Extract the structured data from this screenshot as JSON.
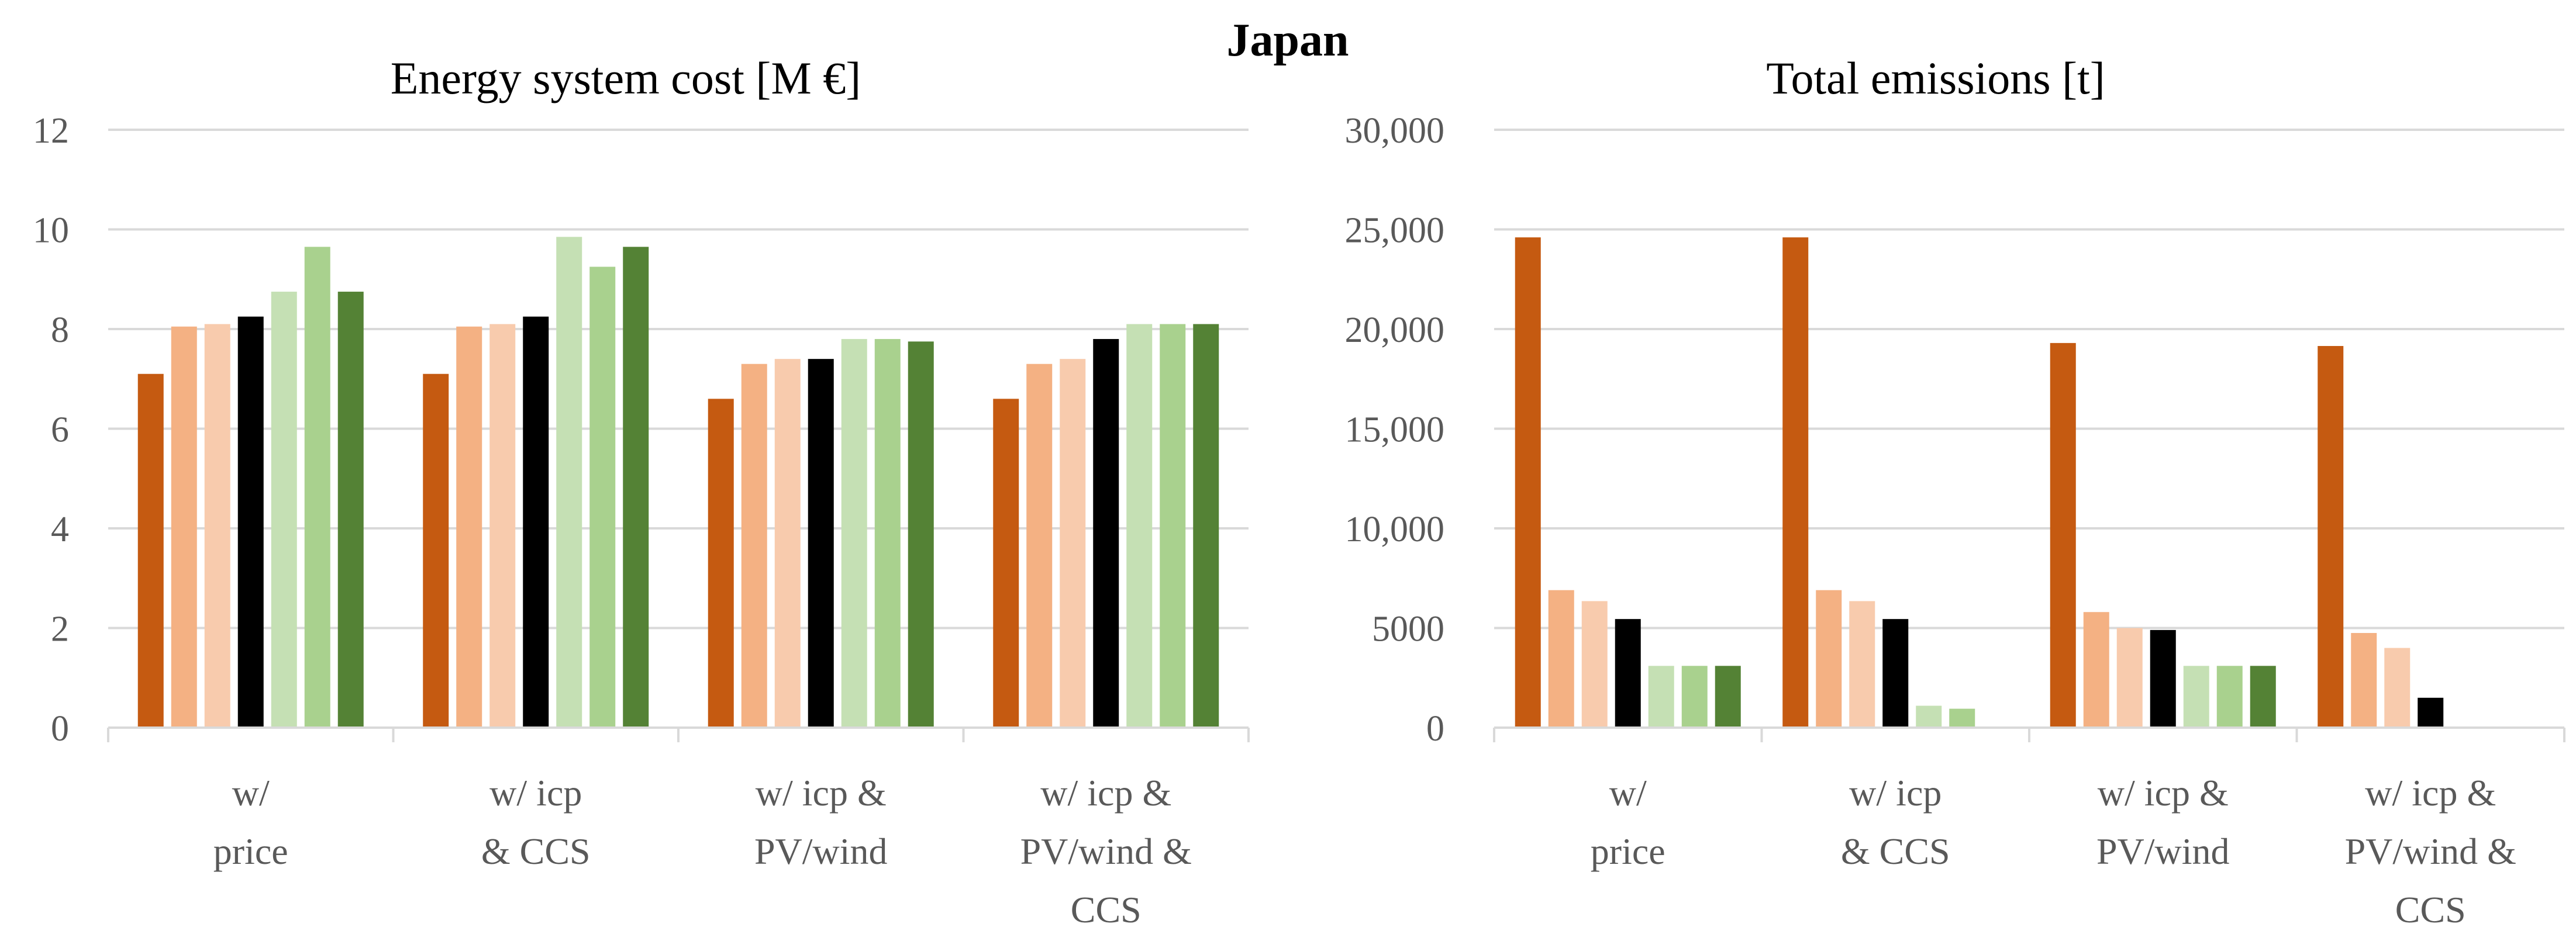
{
  "figure": {
    "title": "Japan"
  },
  "colors": {
    "series": [
      "#c55a11",
      "#f4b183",
      "#f8cbad",
      "#000000",
      "#c5e0b4",
      "#a9d18e",
      "#548235"
    ]
  },
  "chart_data": [
    {
      "type": "bar",
      "title": "Energy system cost [M €]",
      "xlabel": "",
      "ylabel": "",
      "ylim": [
        0,
        12
      ],
      "yticks": [
        0,
        2,
        4,
        6,
        8,
        10,
        12
      ],
      "ytick_labels": [
        "0",
        "2",
        "4",
        "6",
        "8",
        "10",
        "12"
      ],
      "grid": true,
      "categories": [
        [
          "w/",
          "price"
        ],
        [
          "w/ icp",
          "& CCS"
        ],
        [
          "w/ icp &",
          "PV/wind"
        ],
        [
          "w/ icp &",
          "PV/wind &",
          "CCS"
        ]
      ],
      "series": [
        {
          "name": "series-1",
          "values": [
            7.1,
            7.1,
            6.6,
            6.6
          ]
        },
        {
          "name": "series-2",
          "values": [
            8.05,
            8.05,
            7.3,
            7.3
          ]
        },
        {
          "name": "series-3",
          "values": [
            8.1,
            8.1,
            7.4,
            7.4
          ]
        },
        {
          "name": "series-4",
          "values": [
            8.25,
            8.25,
            7.4,
            7.8
          ]
        },
        {
          "name": "series-5",
          "values": [
            8.75,
            9.85,
            7.8,
            8.1
          ]
        },
        {
          "name": "series-6",
          "values": [
            9.65,
            9.25,
            7.8,
            8.1
          ]
        },
        {
          "name": "series-7",
          "values": [
            8.75,
            9.65,
            7.75,
            8.1
          ]
        }
      ]
    },
    {
      "type": "bar",
      "title": "Total emissions [t]",
      "xlabel": "",
      "ylabel": "",
      "ylim": [
        0,
        30000
      ],
      "yticks": [
        0,
        5000,
        10000,
        15000,
        20000,
        25000,
        30000
      ],
      "ytick_labels": [
        "0",
        "5000",
        "10,000",
        "15,000",
        "20,000",
        "25,000",
        "30,000"
      ],
      "grid": true,
      "categories": [
        [
          "w/",
          "price"
        ],
        [
          "w/ icp",
          "& CCS"
        ],
        [
          "w/ icp &",
          "PV/wind"
        ],
        [
          "w/ icp &",
          "PV/wind &",
          "CCS"
        ]
      ],
      "series": [
        {
          "name": "series-1",
          "values": [
            24600,
            24600,
            19300,
            19150
          ]
        },
        {
          "name": "series-2",
          "values": [
            6900,
            6900,
            5800,
            4750
          ]
        },
        {
          "name": "series-3",
          "values": [
            6350,
            6350,
            5000,
            4000
          ]
        },
        {
          "name": "series-4",
          "values": [
            5450,
            5450,
            4900,
            1500
          ]
        },
        {
          "name": "series-5",
          "values": [
            3100,
            1100,
            3100,
            0
          ]
        },
        {
          "name": "series-6",
          "values": [
            3100,
            950,
            3100,
            0
          ]
        },
        {
          "name": "series-7",
          "values": [
            3100,
            0,
            3100,
            0
          ]
        }
      ]
    }
  ]
}
